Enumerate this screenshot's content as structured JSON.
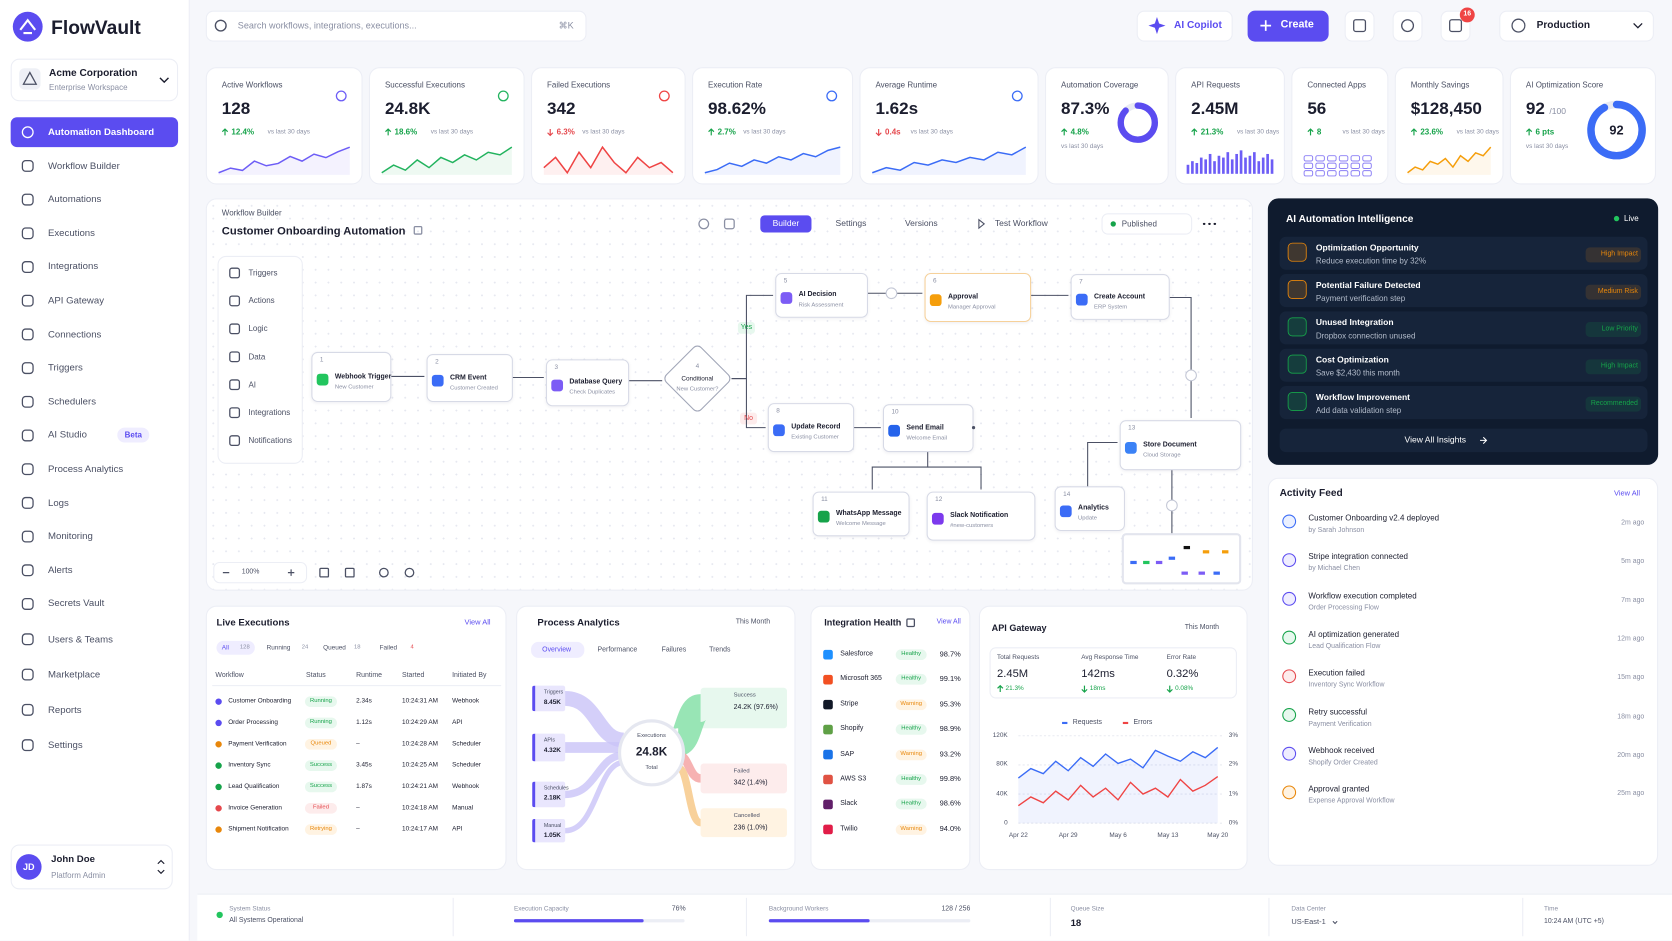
{
  "brand": "FlowVault",
  "workspace": {
    "name": "Acme Corporation",
    "type": "Enterprise Workspace"
  },
  "nav": [
    {
      "label": "Automation Dashboard",
      "active": true
    },
    {
      "label": "Workflow Builder"
    },
    {
      "label": "Automations"
    },
    {
      "label": "Executions"
    },
    {
      "label": "Integrations"
    },
    {
      "label": "API Gateway"
    },
    {
      "label": "Connections"
    },
    {
      "label": "Triggers"
    },
    {
      "label": "Schedulers"
    },
    {
      "label": "AI Studio",
      "badge": "Beta"
    },
    {
      "label": "Process Analytics"
    },
    {
      "label": "Logs"
    },
    {
      "label": "Monitoring"
    },
    {
      "label": "Alerts"
    },
    {
      "label": "Secrets Vault"
    },
    {
      "label": "Users & Teams"
    },
    {
      "label": "Marketplace"
    },
    {
      "label": "Reports"
    },
    {
      "label": "Settings"
    }
  ],
  "user": {
    "initials": "JD",
    "name": "John Doe",
    "role": "Platform Admin"
  },
  "topbar": {
    "search_placeholder": "Search workflows, integrations, executions...",
    "shortcut": "⌘K",
    "copilot": "AI Copilot",
    "create": "Create",
    "notifications": 16,
    "environment": "Production"
  },
  "kpis": [
    {
      "label": "Active Workflows",
      "value": "128",
      "delta": "12.4%",
      "period": "vs last 30 days",
      "trend": "up",
      "kind": "line",
      "color": "#6d5df6",
      "spark": [
        20,
        24,
        22,
        30,
        26,
        28,
        34,
        30,
        36,
        33,
        38,
        42
      ]
    },
    {
      "label": "Successful Executions",
      "value": "24.8K",
      "delta": "18.6%",
      "period": "vs last 30 days",
      "trend": "up",
      "kind": "line",
      "color": "#22b35e",
      "spark": [
        20,
        26,
        22,
        30,
        24,
        32,
        28,
        34,
        30,
        36,
        34,
        40
      ]
    },
    {
      "label": "Failed Executions",
      "value": "342",
      "delta": "6.3%",
      "period": "vs last 30 days",
      "trend": "down",
      "kind": "line",
      "color": "#ef4444",
      "spark": [
        28,
        32,
        26,
        34,
        28,
        36,
        30,
        26,
        32,
        28,
        30,
        26
      ]
    },
    {
      "label": "Execution Rate",
      "value": "98.62%",
      "delta": "2.7%",
      "period": "vs last 30 days",
      "trend": "up",
      "kind": "line",
      "color": "#3b6cf6",
      "spark": [
        20,
        22,
        26,
        24,
        28,
        26,
        30,
        28,
        32,
        30,
        34,
        36
      ]
    },
    {
      "label": "Average Runtime",
      "value": "1.62s",
      "delta": "0.4s",
      "period": "vs last 30 days",
      "trend": "down",
      "kind": "line",
      "color": "#3b6cf6",
      "spark": [
        18,
        22,
        20,
        26,
        24,
        28,
        26,
        30,
        28,
        34,
        32,
        38
      ]
    },
    {
      "label": "Automation Coverage",
      "value": "87.3%",
      "delta": "4.8%",
      "period": "vs last 30 days",
      "trend": "up",
      "kind": "gauge",
      "color": "#5b4cf0",
      "gauge": 87.3
    },
    {
      "label": "API Requests",
      "value": "2.45M",
      "delta": "21.3%",
      "period": "vs last 30 days",
      "trend": "up",
      "kind": "bars",
      "color": "#6d5df6",
      "spark": [
        10,
        14,
        12,
        18,
        16,
        22,
        14,
        20,
        18,
        24,
        16,
        22,
        26,
        18,
        20,
        24,
        14,
        18,
        22,
        16
      ]
    },
    {
      "label": "Connected Apps",
      "value": "56",
      "delta": "8",
      "period": "vs last 30 days",
      "trend": "up",
      "kind": "apps",
      "color": "#8b7ff5"
    },
    {
      "label": "Monthly Savings",
      "value": "$128,450",
      "delta": "23.6%",
      "period": "vs last 30 days",
      "trend": "up",
      "kind": "line",
      "color": "#f59e0b",
      "spark": [
        18,
        22,
        20,
        26,
        24,
        28,
        22,
        30,
        26,
        32,
        30,
        36
      ]
    },
    {
      "label": "AI Optimization Score",
      "value": 92,
      "unit": "/100",
      "delta": "6 pts",
      "period": "vs last 30 days",
      "trend": "up",
      "kind": "gauge",
      "color": "#3b6cf6",
      "gauge": 92
    }
  ],
  "workflow": {
    "section": "Workflow Builder",
    "title": "Customer Onboarding Automation",
    "tabs": [
      "Builder",
      "Settings",
      "Versions"
    ],
    "active_tab": 0,
    "test": "Test Workflow",
    "status": "Published",
    "palette": [
      "Triggers",
      "Actions",
      "Logic",
      "Data",
      "AI",
      "Integrations",
      "Notifications"
    ],
    "nodes": [
      {
        "step": "1",
        "title": "Webhook Trigger",
        "subtitle": "New Customer",
        "color": "#22c55e"
      },
      {
        "step": "2",
        "title": "CRM Event",
        "subtitle": "Customer Created",
        "color": "#3b6cf6"
      },
      {
        "step": "3",
        "title": "Database Query",
        "subtitle": "Check Duplicates",
        "color": "#7c5cf5"
      },
      {
        "step": "4",
        "title": "Conditional",
        "subtitle": "New Customer?",
        "color": "#a1a6b8"
      },
      {
        "step": "5",
        "title": "AI Decision",
        "subtitle": "Risk Assessment",
        "color": "#7c5cf5"
      },
      {
        "step": "6",
        "title": "Approval",
        "subtitle": "Manager Approval",
        "color": "#f59e0b"
      },
      {
        "step": "7",
        "title": "Create Account",
        "subtitle": "ERP System",
        "color": "#3b6cf6"
      },
      {
        "step": "8",
        "title": "Update Record",
        "subtitle": "Existing Customer",
        "color": "#3b6cf6"
      },
      {
        "step": "10",
        "title": "Send Email",
        "subtitle": "Welcome Email",
        "color": "#2563eb"
      },
      {
        "step": "11",
        "title": "WhatsApp Message",
        "subtitle": "Welcome Message",
        "color": "#16a34a"
      },
      {
        "step": "12",
        "title": "Slack Notification",
        "subtitle": "#new-customers",
        "color": "#7c3aed"
      },
      {
        "step": "13",
        "title": "Store Document",
        "subtitle": "Cloud Storage",
        "color": "#3b82f6"
      },
      {
        "step": "14",
        "title": "Analytics",
        "subtitle": "Update",
        "color": "#3b6cf6"
      }
    ],
    "branches": {
      "yes": "Yes",
      "no": "No"
    },
    "zoom": "100%"
  },
  "insights": {
    "title": "AI Automation Intelligence",
    "status": "Live",
    "items": [
      {
        "title": "Optimization Opportunity",
        "detail": "Reduce execution time by 32%",
        "badge": "High Impact",
        "tone": "orange"
      },
      {
        "title": "Potential Failure Detected",
        "detail": "Payment verification step",
        "badge": "Medium Risk",
        "tone": "orange"
      },
      {
        "title": "Unused Integration",
        "detail": "Dropbox connection unused",
        "badge": "Low Priority",
        "tone": "green"
      },
      {
        "title": "Cost Optimization",
        "detail": "Save $2,430 this month",
        "badge": "High Impact",
        "tone": "green"
      },
      {
        "title": "Workflow Improvement",
        "detail": "Add data validation step",
        "badge": "Recommended",
        "tone": "green"
      }
    ],
    "action": "View All Insights"
  },
  "activity": {
    "title": "Activity Feed",
    "action": "View All",
    "items": [
      {
        "title": "Customer Onboarding v2.4 deployed",
        "detail": "by Sarah Johnson",
        "time": "2m ago",
        "tone": "blue"
      },
      {
        "title": "Stripe integration connected",
        "detail": "by Michael Chen",
        "time": "5m ago",
        "tone": "purple"
      },
      {
        "title": "Workflow execution completed",
        "detail": "Order Processing Flow",
        "time": "7m ago",
        "tone": "purple"
      },
      {
        "title": "AI optimization generated",
        "detail": "Lead Qualification Flow",
        "time": "12m ago",
        "tone": "green"
      },
      {
        "title": "Execution failed",
        "detail": "Inventory Sync Workflow",
        "time": "15m ago",
        "tone": "red"
      },
      {
        "title": "Retry successful",
        "detail": "Payment Verification",
        "time": "18m ago",
        "tone": "green"
      },
      {
        "title": "Webhook received",
        "detail": "Shopify Order Created",
        "time": "20m ago",
        "tone": "purple"
      },
      {
        "title": "Approval granted",
        "detail": "Expense Approval Workflow",
        "time": "25m ago",
        "tone": "orange"
      }
    ]
  },
  "executions": {
    "title": "Live Executions",
    "action": "View All",
    "filters": [
      {
        "label": "All",
        "count": 128,
        "active": true
      },
      {
        "label": "Running",
        "count": 24
      },
      {
        "label": "Queued",
        "count": 18
      },
      {
        "label": "Failed",
        "count": 4
      }
    ],
    "columns": [
      "Workflow",
      "Status",
      "Runtime",
      "Started",
      "Initiated By"
    ],
    "rows": [
      {
        "workflow": "Customer Onboarding",
        "status": "Running",
        "runtime": "2.34s",
        "started": "10:24:31 AM",
        "initiated_by": "Webhook",
        "tone": "green"
      },
      {
        "workflow": "Order Processing",
        "status": "Running",
        "runtime": "1.12s",
        "started": "10:24:29 AM",
        "initiated_by": "API",
        "tone": "green"
      },
      {
        "workflow": "Payment Verification",
        "status": "Queued",
        "runtime": "–",
        "started": "10:24:28 AM",
        "initiated_by": "Scheduler",
        "tone": "orange"
      },
      {
        "workflow": "Inventory Sync",
        "status": "Success",
        "runtime": "3.45s",
        "started": "10:24:25 AM",
        "initiated_by": "Scheduler",
        "tone": "green"
      },
      {
        "workflow": "Lead Qualification",
        "status": "Success",
        "runtime": "1.87s",
        "started": "10:24:21 AM",
        "initiated_by": "Webhook",
        "tone": "green"
      },
      {
        "workflow": "Invoice Generation",
        "status": "Failed",
        "runtime": "–",
        "started": "10:24:18 AM",
        "initiated_by": "Manual",
        "tone": "red"
      },
      {
        "workflow": "Shipment Notification",
        "status": "Retrying",
        "runtime": "–",
        "started": "10:24:17 AM",
        "initiated_by": "API",
        "tone": "orange"
      }
    ]
  },
  "process": {
    "title": "Process Analytics",
    "period": "This Month",
    "tabs": [
      "Overview",
      "Performance",
      "Failures",
      "Trends"
    ],
    "sources": [
      {
        "label": "Triggers",
        "value": "8.45K"
      },
      {
        "label": "APIs",
        "value": "4.32K"
      },
      {
        "label": "Schedules",
        "value": "2.18K"
      },
      {
        "label": "Manual",
        "value": "1.05K"
      }
    ],
    "center": {
      "label": "Executions",
      "value": "24.8K",
      "sub": "Total"
    },
    "outcomes": [
      {
        "label": "Success",
        "value": "24.2K (97.6%)",
        "tone": "green"
      },
      {
        "label": "Failed",
        "value": "342 (1.4%)",
        "tone": "red"
      },
      {
        "label": "Cancelled",
        "value": "236 (1.0%)",
        "tone": "orange"
      }
    ]
  },
  "integrations": {
    "title": "Integration Health",
    "action": "View All",
    "items": [
      {
        "name": "Salesforce",
        "status": "Healthy",
        "uptime": "98.7%",
        "tone": "green",
        "color": "#1e90ff"
      },
      {
        "name": "Microsoft 365",
        "status": "Healthy",
        "uptime": "99.1%",
        "tone": "green",
        "color": "#f25022"
      },
      {
        "name": "Stripe",
        "status": "Warning",
        "uptime": "95.3%",
        "tone": "orange",
        "color": "#111827"
      },
      {
        "name": "Shopify",
        "status": "Healthy",
        "uptime": "98.9%",
        "tone": "green",
        "color": "#5fa046"
      },
      {
        "name": "SAP",
        "status": "Warning",
        "uptime": "93.2%",
        "tone": "orange",
        "color": "#1a73e8"
      },
      {
        "name": "AWS S3",
        "status": "Healthy",
        "uptime": "99.8%",
        "tone": "green",
        "color": "#e05243"
      },
      {
        "name": "Slack",
        "status": "Healthy",
        "uptime": "98.6%",
        "tone": "green",
        "color": "#611f69"
      },
      {
        "name": "Twilio",
        "status": "Warning",
        "uptime": "94.0%",
        "tone": "orange",
        "color": "#e11d48"
      }
    ]
  },
  "api_gateway": {
    "title": "API Gateway",
    "period": "This Month",
    "stats": [
      {
        "label": "Total Requests",
        "value": "2.45M",
        "delta": "21.3%",
        "trend": "up",
        "tone": "green"
      },
      {
        "label": "Avg Response Time",
        "value": "142ms",
        "delta": "18ms",
        "trend": "down",
        "tone": "green"
      },
      {
        "label": "Error Rate",
        "value": "0.32%",
        "delta": "0.08%",
        "trend": "down",
        "tone": "green"
      }
    ],
    "chart_data": {
      "type": "line",
      "x": [
        "Apr 22",
        null,
        null,
        null,
        "Apr 29",
        null,
        null,
        null,
        "May 6",
        null,
        null,
        null,
        "May 13",
        null,
        null,
        null,
        "May 20"
      ],
      "series": [
        {
          "name": "Requests",
          "color": "#3b6cf6",
          "values": [
            62000,
            75000,
            68000,
            85000,
            72000,
            90000,
            78000,
            95000,
            82000,
            88000,
            76000,
            100000,
            92000,
            85000,
            98000,
            90000,
            104000
          ]
        },
        {
          "name": "Errors",
          "color": "#ef4444",
          "axis": "y2",
          "values": [
            0.6,
            0.9,
            0.7,
            1.1,
            0.8,
            1.3,
            0.9,
            1.2,
            0.8,
            1.4,
            1.0,
            1.2,
            0.9,
            1.5,
            1.1,
            1.3,
            1.6
          ]
        }
      ],
      "ylim": [
        0,
        120000
      ],
      "yticks": [
        0,
        {
          "value": 40000,
          "label": "40K"
        },
        {
          "value": 80000,
          "label": "80K"
        },
        {
          "value": 120000,
          "label": "120K"
        }
      ],
      "y2lim": [
        0,
        3
      ],
      "y2ticks": [
        {
          "value": 0,
          "label": "0%"
        },
        {
          "value": 1,
          "label": "1%"
        },
        {
          "value": 2,
          "label": "2%"
        },
        {
          "value": 3,
          "label": "3%"
        }
      ],
      "grid": true
    }
  },
  "footer": {
    "status": {
      "label": "System Status",
      "value": "All Systems Operational"
    },
    "capacity": {
      "label": "Execution Capacity",
      "value": 76,
      "value_label": "76%"
    },
    "workers": {
      "label": "Background Workers",
      "used": 128,
      "total": 256,
      "value_label": "128 / 256"
    },
    "queue": {
      "label": "Queue Size",
      "value": 18
    },
    "datacenter": {
      "label": "Data Center",
      "value": "US-East-1"
    },
    "time": {
      "label": "Time",
      "value": "10:24 AM (UTC +5)"
    }
  }
}
